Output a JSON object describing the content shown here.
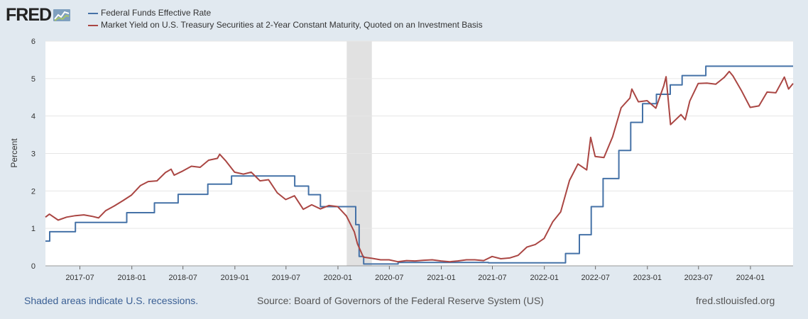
{
  "logo": {
    "text": "FRED",
    "icon": "fred-chart-icon"
  },
  "footer": {
    "recessions_note": "Shaded areas indicate U.S. recessions.",
    "source": "Source: Board of Governors of the Federal Reserve System (US)",
    "site": "fred.stlouisfed.org"
  },
  "chart_data": {
    "type": "line",
    "ylabel": "Percent",
    "ylim": [
      0,
      6
    ],
    "yticks": [
      "0",
      "1",
      "2",
      "3",
      "4",
      "5",
      "6"
    ],
    "xlim": [
      "2017-03-01",
      "2024-05-31"
    ],
    "xticks": [
      "2017-07",
      "2018-01",
      "2018-07",
      "2019-01",
      "2019-07",
      "2020-01",
      "2020-07",
      "2021-01",
      "2021-07",
      "2022-01",
      "2022-07",
      "2023-01",
      "2023-07",
      "2024-01"
    ],
    "grid": true,
    "legend_position": "top-left",
    "recessions": [
      [
        "2020-02-01",
        "2020-04-30"
      ]
    ],
    "series": [
      {
        "name": "Federal Funds Effective Rate",
        "color": "#4572a7",
        "step": true,
        "points": [
          [
            "2017-03-01",
            0.66
          ],
          [
            "2017-03-16",
            0.91
          ],
          [
            "2017-06-15",
            1.16
          ],
          [
            "2017-12-14",
            1.42
          ],
          [
            "2018-03-22",
            1.68
          ],
          [
            "2018-06-14",
            1.91
          ],
          [
            "2018-09-27",
            2.18
          ],
          [
            "2018-12-20",
            2.4
          ],
          [
            "2019-08-01",
            2.13
          ],
          [
            "2019-09-19",
            1.9
          ],
          [
            "2019-10-31",
            1.58
          ],
          [
            "2020-03-04",
            1.1
          ],
          [
            "2020-03-16",
            0.25
          ],
          [
            "2020-04-01",
            0.05
          ],
          [
            "2020-08-01",
            0.09
          ],
          [
            "2021-06-17",
            0.08
          ],
          [
            "2022-03-17",
            0.33
          ],
          [
            "2022-05-05",
            0.83
          ],
          [
            "2022-06-16",
            1.58
          ],
          [
            "2022-07-28",
            2.33
          ],
          [
            "2022-09-22",
            3.08
          ],
          [
            "2022-11-03",
            3.83
          ],
          [
            "2022-12-15",
            4.33
          ],
          [
            "2023-02-02",
            4.58
          ],
          [
            "2023-03-23",
            4.83
          ],
          [
            "2023-05-04",
            5.08
          ],
          [
            "2023-07-27",
            5.33
          ],
          [
            "2024-05-31",
            5.33
          ]
        ]
      },
      {
        "name": "Market Yield on U.S. Treasury Securities at 2-Year Constant Maturity, Quoted on an Investment Basis",
        "color": "#aa4643",
        "step": false,
        "points": [
          [
            "2017-03-01",
            1.3
          ],
          [
            "2017-03-15",
            1.38
          ],
          [
            "2017-04-15",
            1.22
          ],
          [
            "2017-05-15",
            1.3
          ],
          [
            "2017-06-15",
            1.34
          ],
          [
            "2017-07-15",
            1.36
          ],
          [
            "2017-08-15",
            1.32
          ],
          [
            "2017-09-05",
            1.28
          ],
          [
            "2017-09-30",
            1.47
          ],
          [
            "2017-10-31",
            1.6
          ],
          [
            "2017-11-30",
            1.74
          ],
          [
            "2017-12-31",
            1.89
          ],
          [
            "2018-01-31",
            2.14
          ],
          [
            "2018-02-28",
            2.25
          ],
          [
            "2018-03-31",
            2.27
          ],
          [
            "2018-04-30",
            2.49
          ],
          [
            "2018-05-20",
            2.58
          ],
          [
            "2018-05-31",
            2.42
          ],
          [
            "2018-06-30",
            2.53
          ],
          [
            "2018-07-31",
            2.66
          ],
          [
            "2018-08-31",
            2.63
          ],
          [
            "2018-09-30",
            2.82
          ],
          [
            "2018-10-31",
            2.87
          ],
          [
            "2018-11-08",
            2.98
          ],
          [
            "2018-11-30",
            2.8
          ],
          [
            "2018-12-31",
            2.5
          ],
          [
            "2019-01-31",
            2.45
          ],
          [
            "2019-02-28",
            2.5
          ],
          [
            "2019-03-31",
            2.27
          ],
          [
            "2019-04-30",
            2.3
          ],
          [
            "2019-05-31",
            1.95
          ],
          [
            "2019-06-30",
            1.77
          ],
          [
            "2019-07-31",
            1.87
          ],
          [
            "2019-08-31",
            1.51
          ],
          [
            "2019-09-30",
            1.63
          ],
          [
            "2019-10-31",
            1.52
          ],
          [
            "2019-11-30",
            1.61
          ],
          [
            "2019-12-31",
            1.58
          ],
          [
            "2020-01-31",
            1.33
          ],
          [
            "2020-02-28",
            0.91
          ],
          [
            "2020-03-10",
            0.59
          ],
          [
            "2020-03-31",
            0.23
          ],
          [
            "2020-04-30",
            0.2
          ],
          [
            "2020-05-31",
            0.16
          ],
          [
            "2020-06-30",
            0.16
          ],
          [
            "2020-07-31",
            0.11
          ],
          [
            "2020-08-31",
            0.14
          ],
          [
            "2020-09-30",
            0.13
          ],
          [
            "2020-10-31",
            0.15
          ],
          [
            "2020-11-30",
            0.16
          ],
          [
            "2020-12-31",
            0.13
          ],
          [
            "2021-01-31",
            0.11
          ],
          [
            "2021-02-28",
            0.13
          ],
          [
            "2021-03-31",
            0.16
          ],
          [
            "2021-04-30",
            0.16
          ],
          [
            "2021-05-31",
            0.14
          ],
          [
            "2021-06-30",
            0.25
          ],
          [
            "2021-07-31",
            0.19
          ],
          [
            "2021-08-31",
            0.21
          ],
          [
            "2021-09-30",
            0.28
          ],
          [
            "2021-10-31",
            0.5
          ],
          [
            "2021-11-30",
            0.57
          ],
          [
            "2021-12-31",
            0.73
          ],
          [
            "2022-01-31",
            1.18
          ],
          [
            "2022-02-28",
            1.44
          ],
          [
            "2022-03-31",
            2.28
          ],
          [
            "2022-04-30",
            2.72
          ],
          [
            "2022-05-31",
            2.56
          ],
          [
            "2022-06-14",
            3.43
          ],
          [
            "2022-06-30",
            2.92
          ],
          [
            "2022-07-31",
            2.89
          ],
          [
            "2022-08-31",
            3.45
          ],
          [
            "2022-09-30",
            4.22
          ],
          [
            "2022-10-31",
            4.48
          ],
          [
            "2022-11-07",
            4.72
          ],
          [
            "2022-11-30",
            4.38
          ],
          [
            "2022-12-31",
            4.41
          ],
          [
            "2023-01-31",
            4.21
          ],
          [
            "2023-02-28",
            4.81
          ],
          [
            "2023-03-08",
            5.05
          ],
          [
            "2023-03-24",
            3.77
          ],
          [
            "2023-04-30",
            4.04
          ],
          [
            "2023-05-15",
            3.9
          ],
          [
            "2023-05-31",
            4.4
          ],
          [
            "2023-06-30",
            4.87
          ],
          [
            "2023-07-31",
            4.88
          ],
          [
            "2023-08-31",
            4.85
          ],
          [
            "2023-09-30",
            5.03
          ],
          [
            "2023-10-18",
            5.19
          ],
          [
            "2023-10-31",
            5.07
          ],
          [
            "2023-11-30",
            4.68
          ],
          [
            "2023-12-31",
            4.23
          ],
          [
            "2024-01-31",
            4.27
          ],
          [
            "2024-02-29",
            4.64
          ],
          [
            "2024-03-31",
            4.62
          ],
          [
            "2024-04-30",
            5.04
          ],
          [
            "2024-05-15",
            4.72
          ],
          [
            "2024-05-31",
            4.87
          ]
        ]
      }
    ]
  }
}
